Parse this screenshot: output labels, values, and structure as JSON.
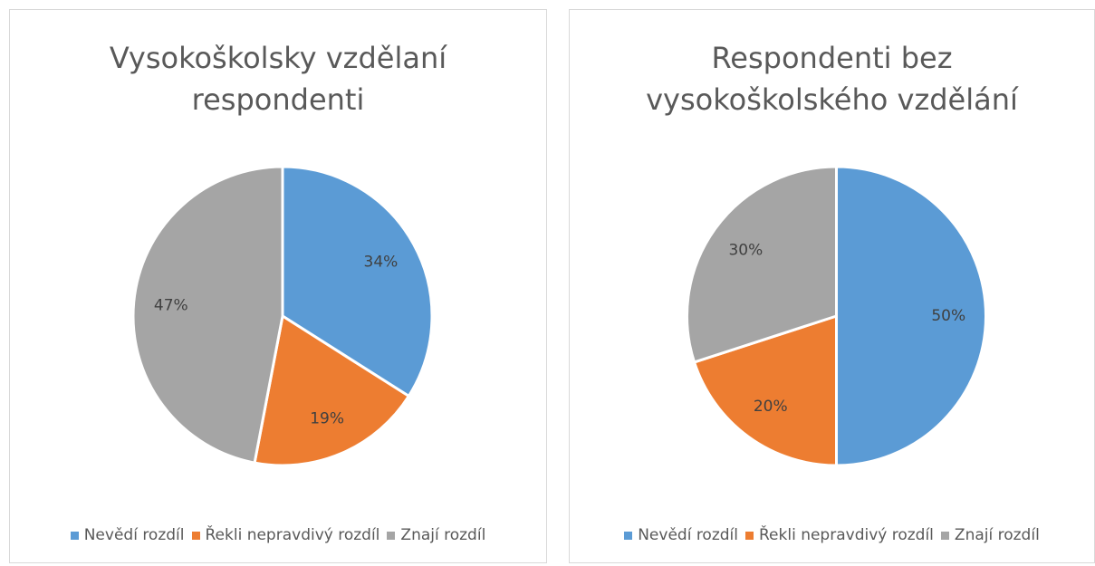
{
  "chart_data": [
    {
      "type": "pie",
      "title": "Vysokoškolsky vzdělaní respondenti",
      "categories": [
        "Nevědí rozdíl",
        "Řekli nepravdivý rozdíl",
        "Znají rozdíl"
      ],
      "values": [
        34,
        19,
        47
      ],
      "value_labels": [
        "34%",
        "19%",
        "47%"
      ],
      "colors": [
        "#5b9bd5",
        "#ed7d31",
        "#a5a5a5"
      ],
      "legend": "bottom"
    },
    {
      "type": "pie",
      "title": "Respondenti bez vysokoškolského vzdělání",
      "categories": [
        "Nevědí rozdíl",
        "Řekli nepravdivý rozdíl",
        "Znají rozdíl"
      ],
      "values": [
        50,
        20,
        30
      ],
      "value_labels": [
        "50%",
        "20%",
        "30%"
      ],
      "colors": [
        "#5b9bd5",
        "#ed7d31",
        "#a5a5a5"
      ],
      "legend": "bottom"
    }
  ]
}
